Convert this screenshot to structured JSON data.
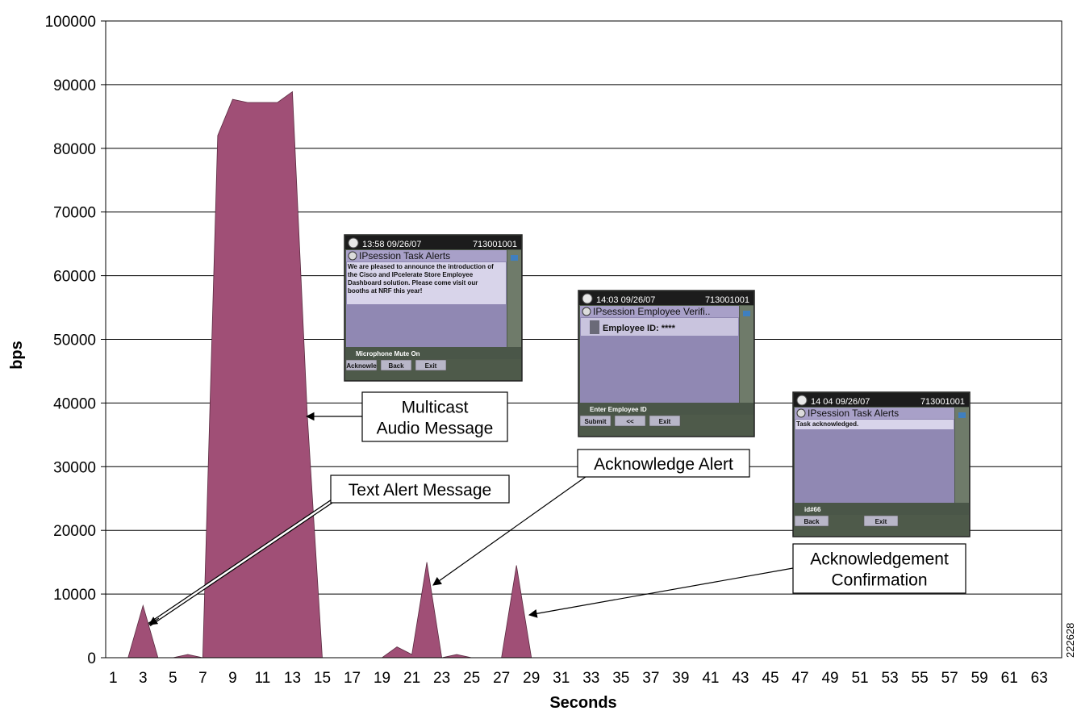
{
  "chart_data": {
    "type": "area",
    "xlabel": "Seconds",
    "ylabel": "bps",
    "ylim": [
      0,
      100000
    ],
    "yticks": [
      0,
      10000,
      20000,
      30000,
      40000,
      50000,
      60000,
      70000,
      80000,
      90000,
      100000
    ],
    "xticks": [
      1,
      3,
      5,
      7,
      9,
      11,
      13,
      15,
      17,
      19,
      21,
      23,
      25,
      27,
      29,
      31,
      33,
      35,
      37,
      39,
      41,
      43,
      45,
      47,
      49,
      51,
      53,
      55,
      57,
      59,
      61,
      63
    ],
    "xlim": [
      1,
      64
    ],
    "grid": "horizontal",
    "series": [
      {
        "color": "#a04f76",
        "x": [
          1,
          2,
          3,
          4,
          5,
          6,
          7,
          8,
          9,
          10,
          11,
          12,
          13,
          14,
          15,
          16,
          17,
          18,
          19,
          20,
          21,
          22,
          23,
          24,
          25,
          26,
          27,
          28,
          29,
          30,
          31,
          32,
          33,
          34,
          35,
          36,
          37,
          38,
          39,
          40,
          41,
          42,
          43,
          44,
          45,
          46,
          47,
          48,
          49,
          50,
          51,
          52,
          53,
          54,
          55,
          56,
          57,
          58,
          59,
          60,
          61,
          62,
          63,
          64
        ],
        "values": [
          0,
          0,
          8200,
          0,
          0,
          500,
          0,
          82000,
          87700,
          87200,
          87200,
          87200,
          88900,
          38000,
          0,
          0,
          0,
          0,
          0,
          1700,
          500,
          15000,
          0,
          500,
          0,
          0,
          0,
          14500,
          0,
          0,
          0,
          0,
          0,
          0,
          0,
          0,
          0,
          0,
          0,
          0,
          0,
          0,
          0,
          0,
          0,
          0,
          0,
          0,
          0,
          0,
          0,
          0,
          0,
          0,
          0,
          0,
          0,
          0,
          0,
          0,
          0,
          0,
          0,
          0
        ]
      }
    ],
    "annotations": [
      {
        "lines": [
          "Multicast",
          "Audio Message"
        ]
      },
      {
        "lines": [
          "Text Alert Message"
        ]
      },
      {
        "lines": [
          "Acknowledge Alert"
        ]
      },
      {
        "lines": [
          "Acknowledgement",
          "Confirmation"
        ]
      }
    ],
    "figure_id": "222628"
  },
  "phone_screens": [
    {
      "time": "13:58 09/26/07",
      "number": "713001001",
      "title": "IPsession Task Alerts",
      "body": [
        "We are pleased to announce the introduction of",
        "the Cisco and IPcelerate Store Employee",
        "Dashboard solution.  Please come visit our",
        "booths at NRF this year!"
      ],
      "status": "Microphone Mute On",
      "softkeys": [
        "Acknowle",
        "Back",
        "Exit"
      ]
    },
    {
      "time": "14:03 09/26/07",
      "number": "713001001",
      "title": "IPsession Employee Verifi..",
      "body": [
        "Employee ID: ****"
      ],
      "status": "Enter Employee ID",
      "softkeys": [
        "Submit",
        "<<",
        "Exit"
      ]
    },
    {
      "time": "14 04 09/26/07",
      "number": "713001001",
      "title": "IPsession Task Alerts",
      "body": [
        "Task acknowledged."
      ],
      "status": "id#66",
      "softkeys": [
        "Back",
        "Exit"
      ]
    }
  ]
}
